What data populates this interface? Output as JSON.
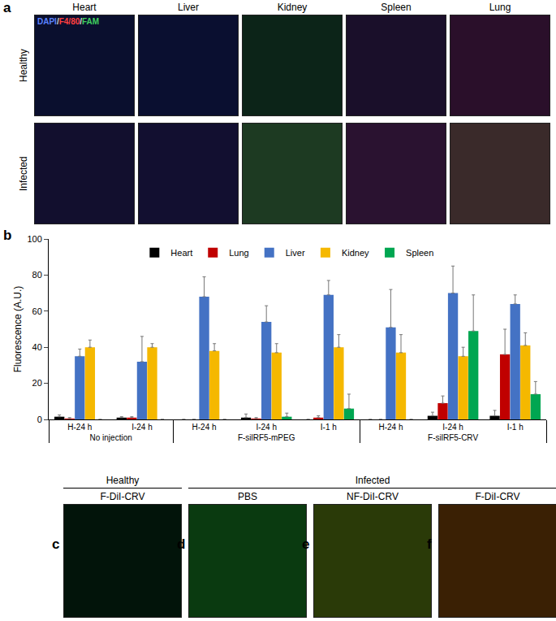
{
  "panel_a": {
    "label": "a",
    "columns": [
      "Heart",
      "Liver",
      "Kidney",
      "Spleen",
      "Lung"
    ],
    "rows": [
      "Healthy",
      "Infected"
    ],
    "stain_label": [
      {
        "text": "DAPI",
        "color": "#5a82ff"
      },
      {
        "text": "/",
        "color": "#dddddd"
      },
      {
        "text": "F4/80",
        "color": "#ff4040"
      },
      {
        "text": "/",
        "color": "#dddddd"
      },
      {
        "text": "FAM",
        "color": "#40d060"
      }
    ]
  },
  "chart_data": {
    "type": "bar",
    "panel_label": "b",
    "y_label": "Fluorescence (A.U.)",
    "groups": [
      "No injection",
      "No injection",
      "F-silRF5-mPEG",
      "F-silRF5-mPEG",
      "F-silRF5-mPEG",
      "F-silRF5-CRV",
      "F-silRF5-CRV",
      "F-silRF5-CRV"
    ],
    "categories": [
      "H-24 h",
      "I-24 h",
      "H-24 h",
      "I-1 h",
      "I-24 h",
      "H-24 h",
      "I-1 h",
      "I-24 h"
    ],
    "series": [
      {
        "name": "Heart",
        "color": "#000000",
        "values": [
          1.5,
          1,
          0,
          0,
          1,
          0,
          2,
          2
        ],
        "errors": [
          1,
          0.5,
          0,
          0,
          2,
          0,
          3,
          2
        ]
      },
      {
        "name": "Lung",
        "color": "#c00000",
        "values": [
          0.5,
          1,
          0,
          1,
          0.5,
          0,
          36,
          9
        ],
        "errors": [
          0.5,
          0.5,
          0,
          1,
          0.5,
          0,
          14,
          4
        ]
      },
      {
        "name": "Liver",
        "color": "#4472c4",
        "values": [
          35,
          32,
          68,
          69,
          54,
          51,
          64,
          70
        ],
        "errors": [
          4,
          14,
          11,
          8,
          9,
          21,
          5,
          15
        ]
      },
      {
        "name": "Kidney",
        "color": "#f5b800",
        "values": [
          40,
          40,
          38,
          40,
          37,
          37,
          41,
          35
        ],
        "errors": [
          4,
          2,
          4,
          7,
          5,
          10,
          7,
          5
        ]
      },
      {
        "name": "Spleen",
        "color": "#00a651",
        "values": [
          0,
          0,
          0,
          6,
          1.5,
          0,
          14,
          49
        ],
        "errors": [
          0,
          0,
          0,
          8,
          2,
          0,
          7,
          20
        ]
      }
    ],
    "ylim": [
      0,
      100
    ],
    "yticks": [
      0,
      20,
      40,
      60,
      80,
      100
    ],
    "grid": false,
    "legend": "top"
  },
  "panel_cf": {
    "groups": [
      {
        "text": "Healthy",
        "panels": [
          "c"
        ]
      },
      {
        "text": "Infected",
        "panels": [
          "d",
          "e",
          "f"
        ]
      }
    ],
    "panels": [
      {
        "label": "c",
        "title": "F-DiI-CRV"
      },
      {
        "label": "d",
        "title": "PBS"
      },
      {
        "label": "e",
        "title": "NF-DiI-CRV"
      },
      {
        "label": "f",
        "title": "F-DiI-CRV"
      }
    ]
  }
}
